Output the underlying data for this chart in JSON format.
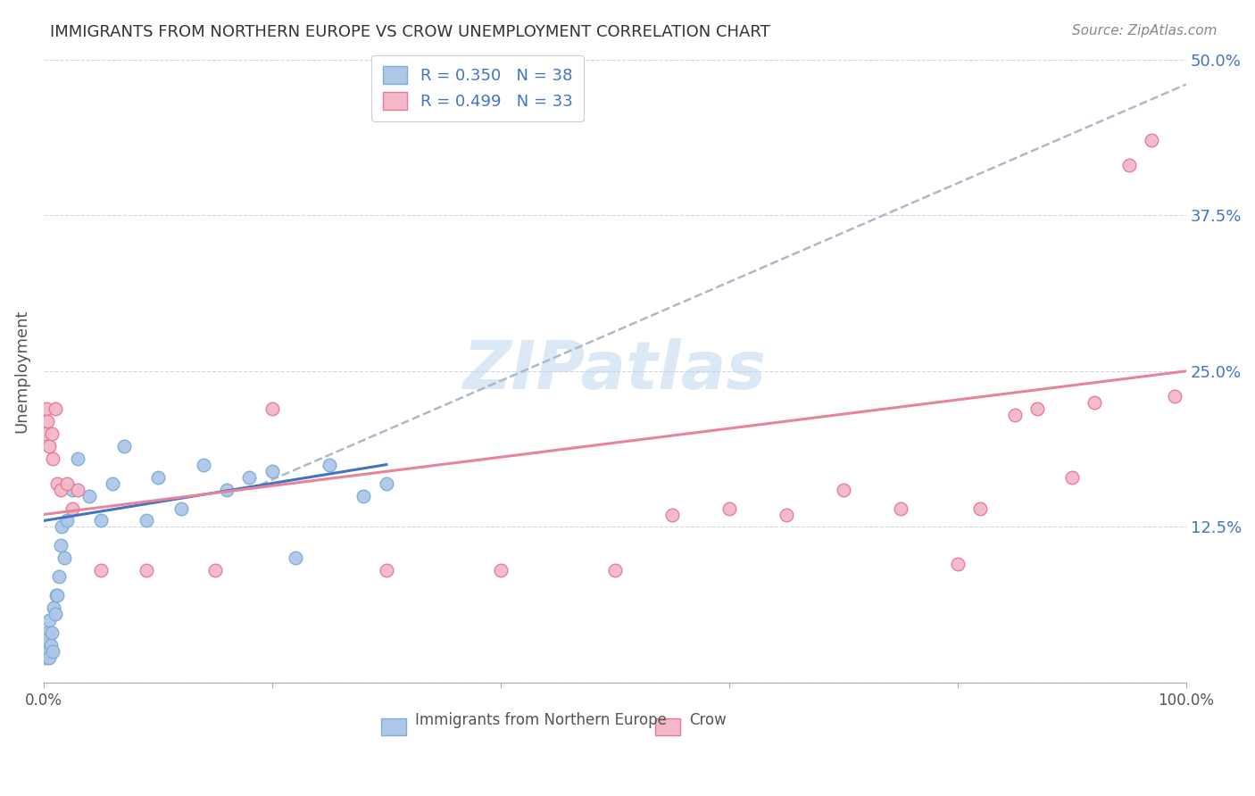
{
  "title": "IMMIGRANTS FROM NORTHERN EUROPE VS CROW UNEMPLOYMENT CORRELATION CHART",
  "source": "Source: ZipAtlas.com",
  "ylabel": "Unemployment",
  "xlim": [
    0,
    1.0
  ],
  "ylim": [
    0,
    0.5
  ],
  "xtick_labels": [
    "0.0%",
    "",
    "",
    "",
    "",
    "100.0%"
  ],
  "ytick_labels": [
    "",
    "12.5%",
    "25.0%",
    "37.5%",
    "50.0%"
  ],
  "blue_fill": "#aec6e8",
  "blue_edge": "#7bafd4",
  "pink_fill": "#f4b8c8",
  "pink_edge": "#e87898",
  "blue_line_color": "#4472c4",
  "pink_line_color": "#e8849a",
  "gray_dash_color": "#b0b8c8",
  "watermark": "ZIPatlas",
  "R_blue": 0.35,
  "N_blue": 38,
  "R_pink": 0.499,
  "N_pink": 33,
  "blue_points_x": [
    0.001,
    0.002,
    0.002,
    0.003,
    0.003,
    0.004,
    0.004,
    0.005,
    0.005,
    0.006,
    0.007,
    0.008,
    0.009,
    0.01,
    0.011,
    0.012,
    0.013,
    0.015,
    0.016,
    0.018,
    0.02,
    0.025,
    0.03,
    0.04,
    0.05,
    0.06,
    0.07,
    0.09,
    0.1,
    0.12,
    0.14,
    0.16,
    0.18,
    0.2,
    0.22,
    0.25,
    0.28,
    0.3
  ],
  "blue_points_y": [
    0.02,
    0.025,
    0.03,
    0.02,
    0.04,
    0.025,
    0.035,
    0.02,
    0.05,
    0.03,
    0.04,
    0.025,
    0.06,
    0.055,
    0.07,
    0.07,
    0.085,
    0.11,
    0.125,
    0.1,
    0.13,
    0.155,
    0.18,
    0.15,
    0.13,
    0.16,
    0.19,
    0.13,
    0.165,
    0.14,
    0.175,
    0.155,
    0.165,
    0.17,
    0.1,
    0.175,
    0.15,
    0.16
  ],
  "pink_points_x": [
    0.001,
    0.002,
    0.003,
    0.005,
    0.007,
    0.008,
    0.01,
    0.012,
    0.015,
    0.02,
    0.025,
    0.03,
    0.05,
    0.09,
    0.3,
    0.4,
    0.5,
    0.55,
    0.6,
    0.65,
    0.7,
    0.75,
    0.8,
    0.82,
    0.85,
    0.87,
    0.9,
    0.92,
    0.95,
    0.97,
    0.99,
    0.2,
    0.15
  ],
  "pink_points_y": [
    0.2,
    0.22,
    0.21,
    0.19,
    0.2,
    0.18,
    0.22,
    0.16,
    0.155,
    0.16,
    0.14,
    0.155,
    0.09,
    0.09,
    0.09,
    0.09,
    0.09,
    0.135,
    0.14,
    0.135,
    0.155,
    0.14,
    0.095,
    0.14,
    0.215,
    0.22,
    0.165,
    0.225,
    0.415,
    0.435,
    0.23,
    0.22,
    0.09
  ],
  "blue_line_x0": 0.0,
  "blue_line_x1": 0.3,
  "blue_line_y0": 0.13,
  "blue_line_y1": 0.175,
  "pink_line_x0": 0.0,
  "pink_line_x1": 1.0,
  "pink_line_y0": 0.135,
  "pink_line_y1": 0.25,
  "gray_line_x0": 0.18,
  "gray_line_x1": 1.0,
  "gray_line_y0": 0.155,
  "gray_line_y1": 0.48
}
